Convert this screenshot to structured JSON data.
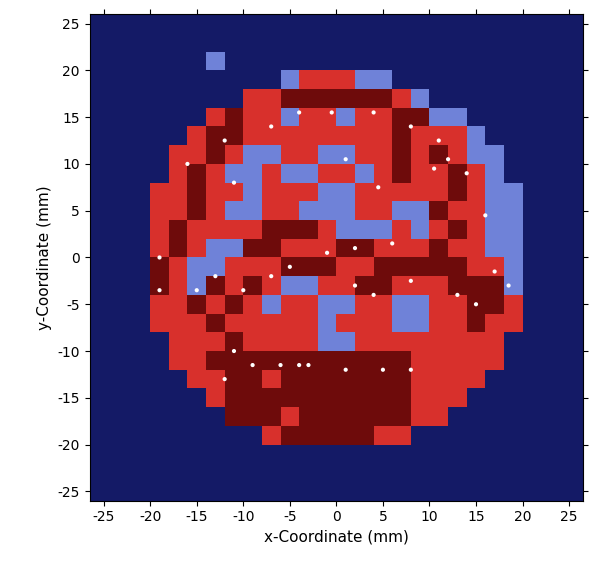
{
  "chart_data": {
    "type": "heatmap",
    "x_label": "x-Coordinate (mm)",
    "y_label": "y-Coordinate (mm)",
    "xlim": [
      -26.5,
      26.5
    ],
    "ylim": [
      -26,
      26
    ],
    "xticks": [
      -25,
      -20,
      -15,
      -10,
      -5,
      0,
      5,
      10,
      15,
      20,
      25
    ],
    "yticks": [
      -25,
      -20,
      -15,
      -10,
      -5,
      0,
      5,
      10,
      15,
      20,
      25
    ],
    "x": [
      -25,
      -23,
      -21,
      -19,
      -17,
      -15,
      -13,
      -11,
      -9,
      -7,
      -5,
      -3,
      -1,
      1,
      3,
      5,
      7,
      9,
      11,
      13,
      15,
      17,
      19,
      21,
      23,
      25
    ],
    "y": [
      25,
      23,
      21,
      19,
      17,
      15,
      13,
      11,
      9,
      7,
      5,
      3,
      1,
      -1,
      -3,
      -5,
      -7,
      -9,
      -11,
      -13,
      -15,
      -17,
      -19,
      -21,
      -23,
      -25
    ],
    "cells": [
      [
        0,
        0,
        0,
        0,
        0,
        0,
        0,
        0,
        0,
        0,
        0,
        0,
        0,
        0,
        0,
        0,
        0,
        0,
        0,
        0,
        0,
        0,
        0,
        0,
        0,
        0
      ],
      [
        0,
        0,
        0,
        0,
        0,
        0,
        0,
        0,
        0,
        0,
        0,
        0,
        0,
        0,
        0,
        0,
        0,
        0,
        0,
        0,
        0,
        0,
        0,
        0,
        0,
        0
      ],
      [
        0,
        0,
        0,
        0,
        0,
        0,
        1,
        0,
        0,
        0,
        0,
        0,
        0,
        0,
        0,
        0,
        0,
        0,
        0,
        0,
        0,
        0,
        0,
        0,
        0,
        0
      ],
      [
        0,
        0,
        0,
        0,
        0,
        0,
        0,
        0,
        0,
        0,
        1,
        2,
        2,
        2,
        1,
        1,
        0,
        0,
        0,
        0,
        0,
        0,
        0,
        0,
        0,
        0
      ],
      [
        0,
        0,
        0,
        0,
        0,
        0,
        0,
        0,
        2,
        2,
        3,
        3,
        3,
        3,
        3,
        3,
        2,
        1,
        0,
        0,
        0,
        0,
        0,
        0,
        0,
        0
      ],
      [
        0,
        0,
        0,
        0,
        0,
        0,
        2,
        3,
        2,
        2,
        1,
        2,
        2,
        1,
        2,
        2,
        3,
        3,
        1,
        1,
        0,
        0,
        0,
        0,
        0,
        0
      ],
      [
        0,
        0,
        0,
        0,
        0,
        2,
        3,
        3,
        2,
        2,
        2,
        2,
        2,
        2,
        2,
        2,
        3,
        2,
        2,
        2,
        1,
        0,
        0,
        0,
        0,
        0
      ],
      [
        0,
        0,
        0,
        0,
        2,
        2,
        3,
        2,
        1,
        1,
        2,
        2,
        1,
        1,
        2,
        2,
        3,
        2,
        3,
        2,
        1,
        1,
        0,
        0,
        0,
        0
      ],
      [
        0,
        0,
        0,
        0,
        2,
        3,
        2,
        1,
        1,
        2,
        1,
        1,
        2,
        2,
        1,
        2,
        3,
        2,
        2,
        3,
        2,
        1,
        0,
        0,
        0,
        0
      ],
      [
        0,
        0,
        0,
        2,
        2,
        3,
        2,
        2,
        1,
        2,
        2,
        2,
        1,
        1,
        2,
        2,
        2,
        2,
        2,
        3,
        2,
        1,
        1,
        0,
        0,
        0
      ],
      [
        0,
        0,
        0,
        2,
        2,
        3,
        2,
        1,
        1,
        2,
        2,
        1,
        1,
        1,
        2,
        2,
        1,
        1,
        3,
        2,
        2,
        1,
        1,
        0,
        0,
        0
      ],
      [
        0,
        0,
        0,
        2,
        3,
        2,
        2,
        2,
        2,
        3,
        3,
        3,
        2,
        1,
        1,
        1,
        2,
        1,
        2,
        3,
        2,
        1,
        1,
        0,
        0,
        0
      ],
      [
        0,
        0,
        0,
        2,
        3,
        2,
        1,
        1,
        3,
        3,
        2,
        2,
        2,
        3,
        3,
        2,
        2,
        2,
        3,
        2,
        2,
        1,
        1,
        0,
        0,
        0
      ],
      [
        0,
        0,
        0,
        3,
        2,
        1,
        1,
        2,
        2,
        2,
        3,
        3,
        3,
        2,
        2,
        3,
        3,
        3,
        3,
        3,
        2,
        2,
        1,
        0,
        0,
        0
      ],
      [
        0,
        0,
        0,
        3,
        2,
        1,
        3,
        2,
        3,
        2,
        1,
        1,
        2,
        2,
        3,
        3,
        2,
        2,
        2,
        3,
        3,
        3,
        1,
        0,
        0,
        0
      ],
      [
        0,
        0,
        0,
        2,
        2,
        3,
        2,
        3,
        2,
        1,
        2,
        2,
        1,
        1,
        2,
        2,
        1,
        1,
        2,
        2,
        3,
        3,
        2,
        0,
        0,
        0
      ],
      [
        0,
        0,
        0,
        2,
        2,
        2,
        3,
        2,
        2,
        2,
        2,
        2,
        1,
        2,
        2,
        2,
        1,
        1,
        2,
        2,
        3,
        2,
        2,
        0,
        0,
        0
      ],
      [
        0,
        0,
        0,
        0,
        2,
        2,
        2,
        3,
        2,
        2,
        2,
        2,
        1,
        1,
        2,
        2,
        2,
        2,
        2,
        2,
        2,
        2,
        0,
        0,
        0,
        0
      ],
      [
        0,
        0,
        0,
        0,
        2,
        2,
        3,
        3,
        3,
        3,
        3,
        3,
        3,
        3,
        3,
        3,
        3,
        2,
        2,
        2,
        2,
        2,
        0,
        0,
        0,
        0
      ],
      [
        0,
        0,
        0,
        0,
        0,
        2,
        2,
        3,
        3,
        2,
        3,
        3,
        3,
        3,
        3,
        3,
        3,
        2,
        2,
        2,
        2,
        0,
        0,
        0,
        0,
        0
      ],
      [
        0,
        0,
        0,
        0,
        0,
        0,
        2,
        3,
        3,
        3,
        3,
        3,
        3,
        3,
        3,
        3,
        3,
        2,
        2,
        2,
        0,
        0,
        0,
        0,
        0,
        0
      ],
      [
        0,
        0,
        0,
        0,
        0,
        0,
        0,
        3,
        3,
        3,
        2,
        3,
        3,
        3,
        3,
        3,
        3,
        2,
        2,
        0,
        0,
        0,
        0,
        0,
        0,
        0
      ],
      [
        0,
        0,
        0,
        0,
        0,
        0,
        0,
        0,
        0,
        2,
        3,
        3,
        3,
        3,
        3,
        2,
        2,
        0,
        0,
        0,
        0,
        0,
        0,
        0,
        0,
        0
      ],
      [
        0,
        0,
        0,
        0,
        0,
        0,
        0,
        0,
        0,
        0,
        0,
        0,
        0,
        0,
        0,
        0,
        0,
        0,
        0,
        0,
        0,
        0,
        0,
        0,
        0,
        0
      ],
      [
        0,
        0,
        0,
        0,
        0,
        0,
        0,
        0,
        0,
        0,
        0,
        0,
        0,
        0,
        0,
        0,
        0,
        0,
        0,
        0,
        0,
        0,
        0,
        0,
        0,
        0
      ],
      [
        0,
        0,
        0,
        0,
        0,
        0,
        0,
        0,
        0,
        0,
        0,
        0,
        0,
        0,
        0,
        0,
        0,
        0,
        0,
        0,
        0,
        0,
        0,
        0,
        0,
        0
      ]
    ],
    "points": {
      "x": [
        -12,
        -7,
        -4,
        -0.5,
        4,
        8,
        11,
        10.5,
        14,
        16,
        17,
        18.5,
        15,
        13,
        8,
        4,
        2,
        -1,
        2,
        6,
        -5,
        -7,
        -10,
        -13,
        -15,
        -19,
        -19,
        -11,
        -9,
        -6,
        -3,
        1,
        5,
        8,
        -12,
        -4,
        -16,
        1,
        4.5,
        -11,
        12
      ],
      "y": [
        12.5,
        14,
        15.5,
        15.5,
        15.5,
        14,
        12.5,
        9.5,
        9,
        4.5,
        -1.5,
        -3,
        -5,
        -4,
        -2.5,
        -4,
        -3,
        0.5,
        1,
        1.5,
        -1,
        -2,
        -3.5,
        -2,
        -3.5,
        0,
        -3.5,
        -10,
        -11.5,
        -11.5,
        -11.5,
        -12,
        -12,
        -12,
        -13,
        -11.5,
        10,
        10.5,
        7.5,
        8,
        10.5
      ]
    }
  }
}
